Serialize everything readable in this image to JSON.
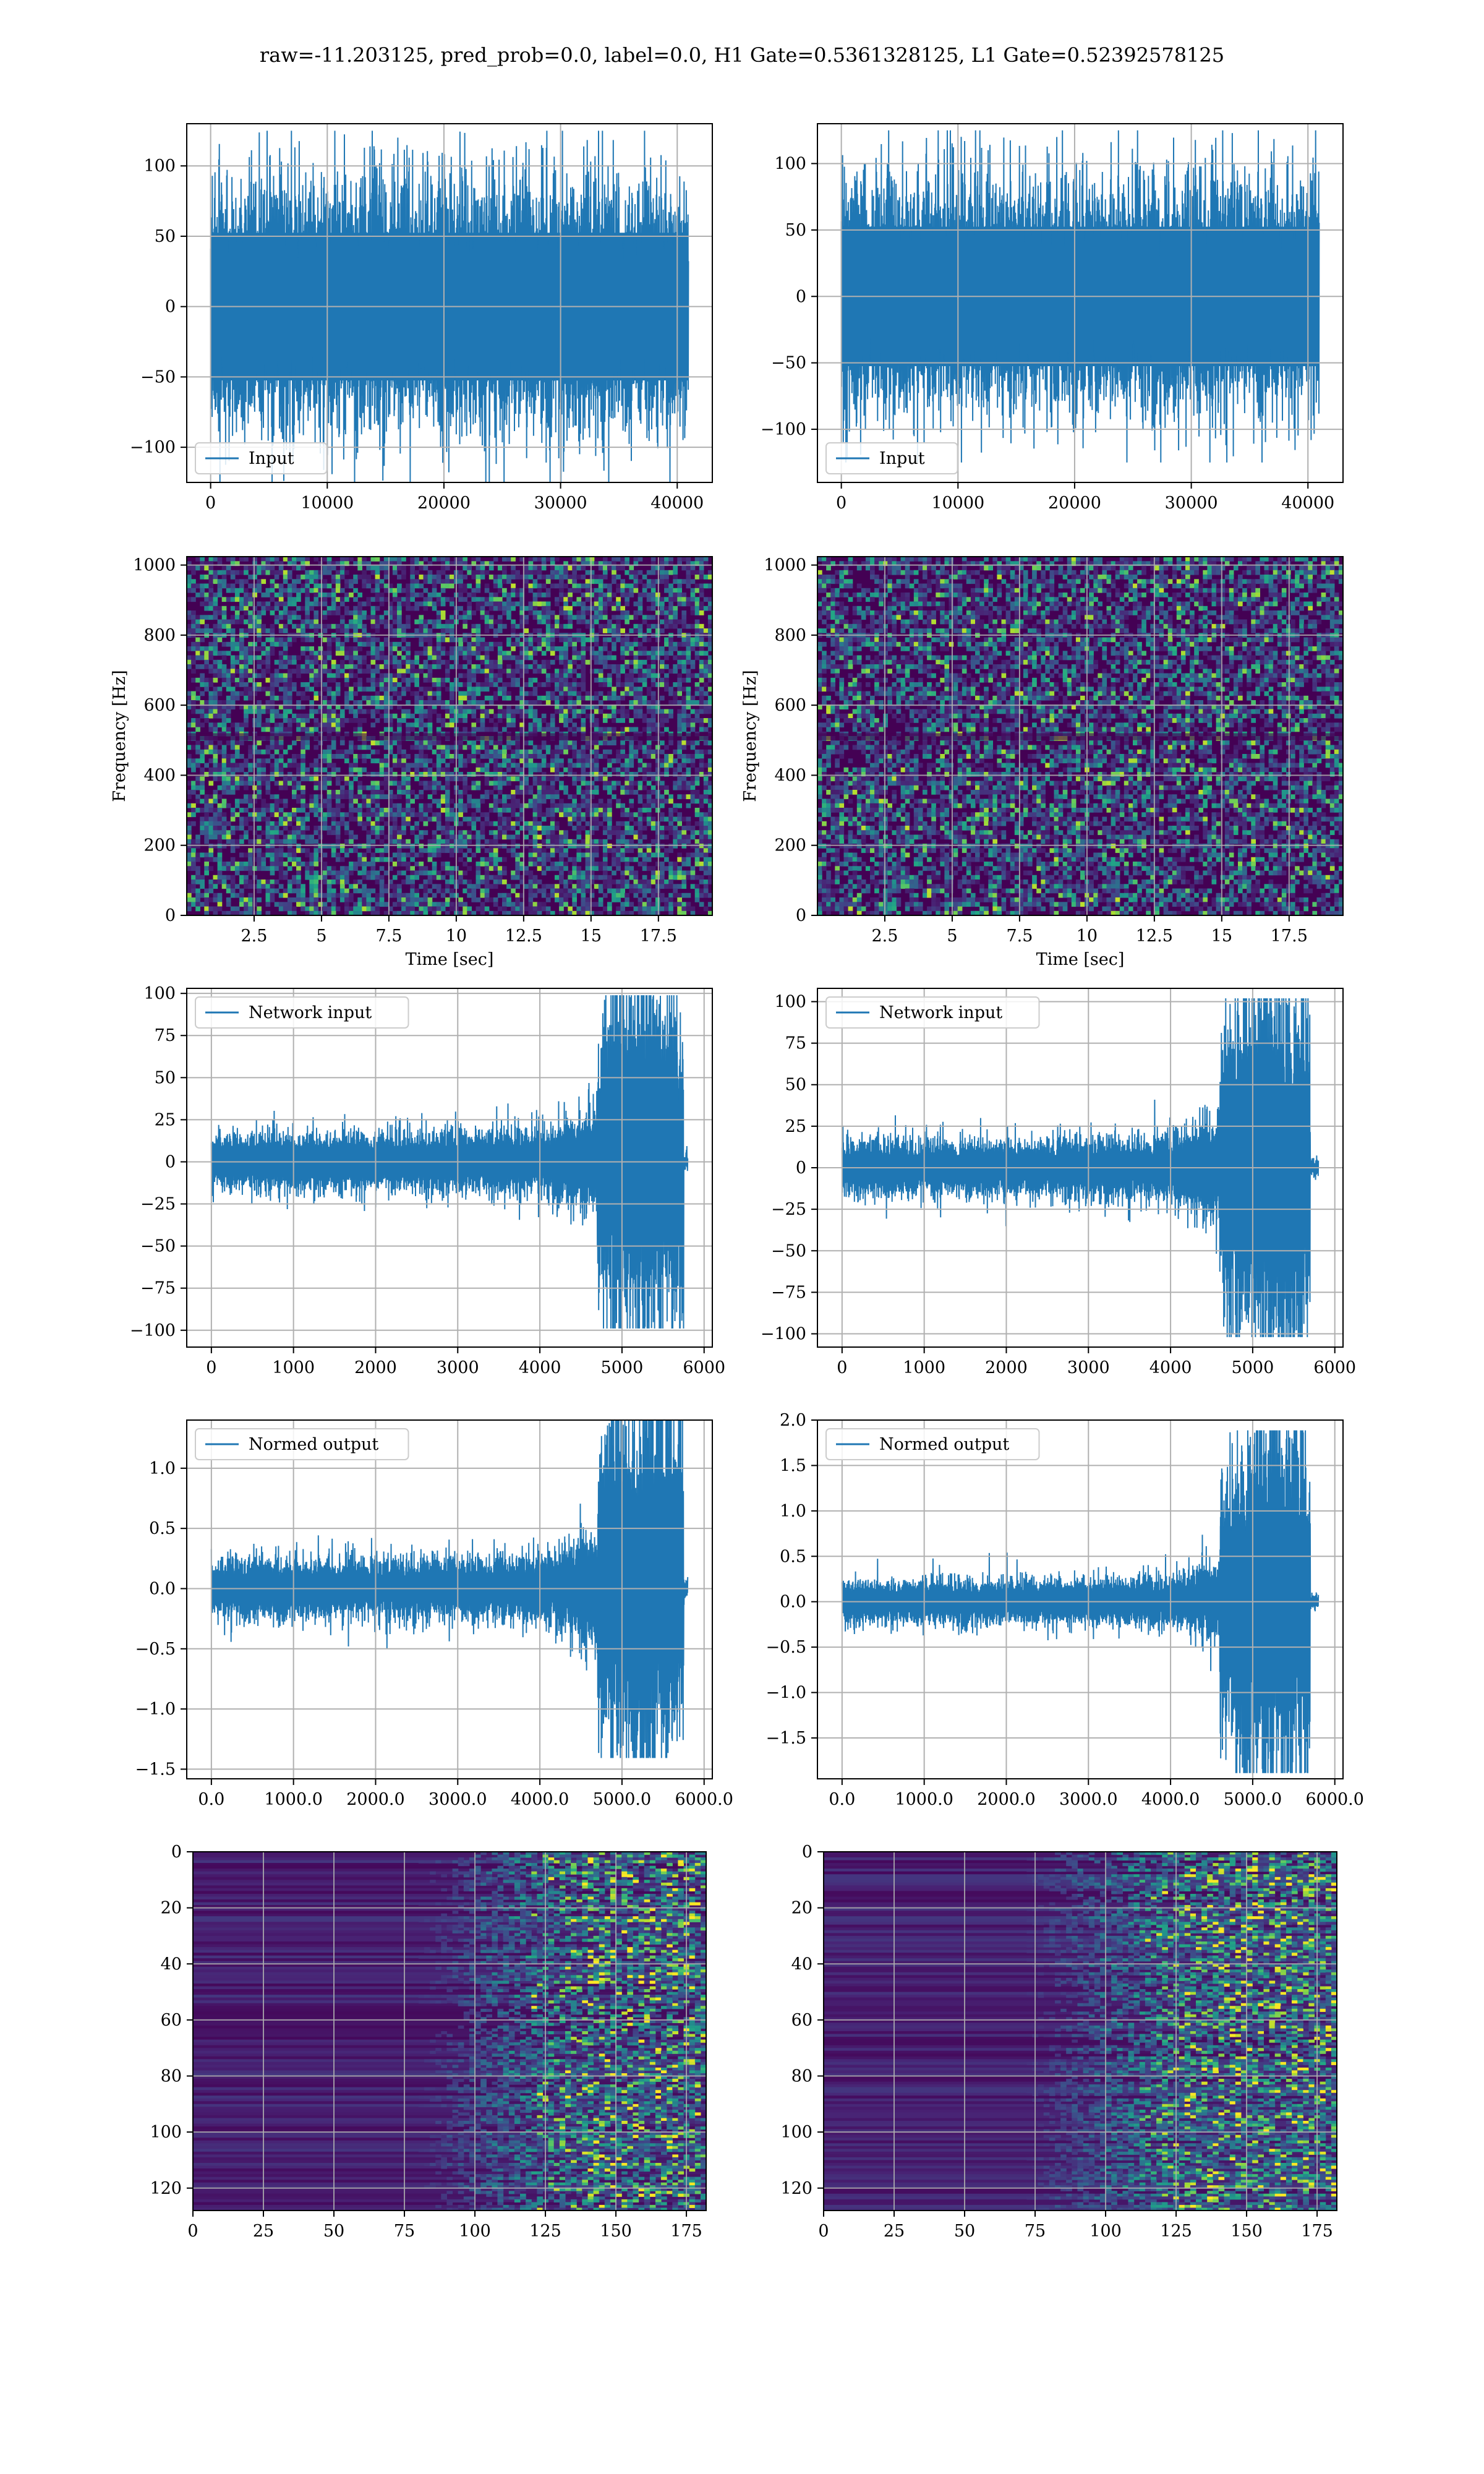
{
  "figure": {
    "title": "raw=-11.203125, pred_prob=0.0, label=0.0, H1 Gate=0.5361328125, L1 Gate=0.52392578125"
  },
  "colors": {
    "line": "#1f77b4",
    "grid": "#b0b0b0",
    "viridis_dark": "#440154",
    "viridis_mid": "#21918c",
    "viridis_bright": "#fde725"
  },
  "chart_data": [
    {
      "id": "h1-input",
      "type": "line",
      "xlim": [
        -2048,
        43008
      ],
      "ylim": [
        -125,
        130
      ],
      "xticks": [
        0,
        10000,
        20000,
        30000,
        40000
      ],
      "yticks": [
        -100,
        -50,
        0,
        50,
        100
      ],
      "x_range": [
        0,
        40960
      ],
      "amplitude": 125,
      "grid": true,
      "legend": "lower-left",
      "series": [
        {
          "name": "Input"
        }
      ]
    },
    {
      "id": "l1-input",
      "type": "line",
      "xlim": [
        -2048,
        43008
      ],
      "ylim": [
        -140,
        130
      ],
      "xticks": [
        0,
        10000,
        20000,
        30000,
        40000
      ],
      "yticks": [
        -100,
        -50,
        0,
        50,
        100
      ],
      "x_range": [
        0,
        40960
      ],
      "amplitude": 125,
      "grid": true,
      "legend": "lower-left",
      "series": [
        {
          "name": "Input"
        }
      ]
    },
    {
      "id": "h1-spectrogram",
      "type": "heatmap",
      "xlim": [
        0,
        19.5
      ],
      "ylim": [
        0,
        1024
      ],
      "xticks": [
        2.5,
        5.0,
        7.5,
        10.0,
        12.5,
        15.0,
        17.5
      ],
      "yticks": [
        0,
        200,
        400,
        600,
        800,
        1000
      ],
      "xlabel": "Time [sec]",
      "ylabel": "Frequency [Hz]",
      "colormap": "viridis",
      "grid": true
    },
    {
      "id": "l1-spectrogram",
      "type": "heatmap",
      "xlim": [
        0,
        19.5
      ],
      "ylim": [
        0,
        1024
      ],
      "xticks": [
        2.5,
        5.0,
        7.5,
        10.0,
        12.5,
        15.0,
        17.5
      ],
      "yticks": [
        0,
        200,
        400,
        600,
        800,
        1000
      ],
      "xlabel": "Time [sec]",
      "ylabel": "Frequency [Hz]",
      "colormap": "viridis",
      "grid": true
    },
    {
      "id": "h1-network-input",
      "type": "line",
      "xlim": [
        -300,
        6100
      ],
      "ylim": [
        -110,
        103
      ],
      "xticks": [
        0,
        1000,
        2000,
        3000,
        4000,
        5000,
        6000
      ],
      "yticks": [
        -100,
        -75,
        -50,
        -25,
        0,
        25,
        50,
        75,
        100
      ],
      "x_range": [
        0,
        5800
      ],
      "envelope": {
        "base": 14,
        "peak": 97,
        "chirp_start": 4700,
        "chirp_end": 5750
      },
      "grid": true,
      "legend": "upper-left",
      "series": [
        {
          "name": "Network input"
        }
      ]
    },
    {
      "id": "l1-network-input",
      "type": "line",
      "xlim": [
        -300,
        6100
      ],
      "ylim": [
        -108,
        108
      ],
      "xticks": [
        0,
        1000,
        2000,
        3000,
        4000,
        5000,
        6000
      ],
      "yticks": [
        -100,
        -75,
        -50,
        -25,
        0,
        25,
        50,
        75,
        100
      ],
      "x_range": [
        0,
        5800
      ],
      "envelope": {
        "base": 14,
        "peak": 100,
        "chirp_start": 4600,
        "chirp_end": 5700
      },
      "grid": true,
      "legend": "upper-left",
      "series": [
        {
          "name": "Network input"
        }
      ]
    },
    {
      "id": "h1-normed-output",
      "type": "line",
      "xlim": [
        -300,
        6100
      ],
      "ylim": [
        -1.58,
        1.4
      ],
      "xticks": [
        0,
        1000,
        2000,
        3000,
        4000,
        5000,
        6000
      ],
      "yticks": [
        -1.5,
        -1.0,
        -0.5,
        0.0,
        0.5,
        1.0
      ],
      "tick_format": "1dp",
      "x_range": [
        0,
        5800
      ],
      "envelope": {
        "base": 0.2,
        "peak": 1.38,
        "chirp_start": 4700,
        "chirp_end": 5750
      },
      "grid": true,
      "legend": "upper-left",
      "series": [
        {
          "name": "Normed output"
        }
      ]
    },
    {
      "id": "l1-normed-output",
      "type": "line",
      "xlim": [
        -300,
        6100
      ],
      "ylim": [
        -1.95,
        2.0
      ],
      "xticks": [
        0,
        1000,
        2000,
        3000,
        4000,
        5000,
        6000
      ],
      "yticks": [
        -1.5,
        -1.0,
        -0.5,
        0.0,
        0.5,
        1.0,
        1.5,
        2.0
      ],
      "tick_format": "1dp",
      "x_range": [
        0,
        5800
      ],
      "envelope": {
        "base": 0.2,
        "peak": 1.85,
        "chirp_start": 4600,
        "chirp_end": 5700
      },
      "grid": true,
      "legend": "upper-left",
      "series": [
        {
          "name": "Normed output"
        }
      ]
    },
    {
      "id": "h1-feature-map",
      "type": "heatmap",
      "xlim": [
        0,
        182
      ],
      "ylim": [
        128,
        0
      ],
      "xticks": [
        0,
        25,
        50,
        75,
        100,
        125,
        150,
        175
      ],
      "yticks": [
        0,
        20,
        40,
        60,
        80,
        100,
        120
      ],
      "colormap": "viridis",
      "active_from": 120,
      "grid": true
    },
    {
      "id": "l1-feature-map",
      "type": "heatmap",
      "xlim": [
        0,
        182
      ],
      "ylim": [
        128,
        0
      ],
      "xticks": [
        0,
        25,
        50,
        75,
        100,
        125,
        150,
        175
      ],
      "yticks": [
        0,
        20,
        40,
        60,
        80,
        100,
        120
      ],
      "colormap": "viridis",
      "active_from": 112,
      "grid": true
    }
  ]
}
